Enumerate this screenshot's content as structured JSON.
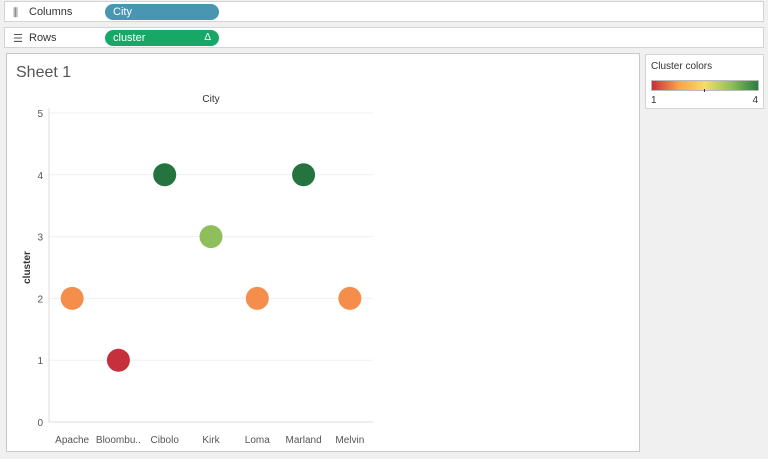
{
  "shelves": {
    "columns": {
      "label": "Columns",
      "icon": "columns-icon",
      "pill": "City",
      "pill_color": "#4996b2"
    },
    "rows": {
      "label": "Rows",
      "icon": "rows-icon",
      "pill": "cluster",
      "pill_delta": "Δ",
      "pill_color": "#17a868"
    }
  },
  "sheet": {
    "title": "Sheet 1"
  },
  "legend": {
    "title": "Cluster colors",
    "min": "1",
    "max": "4",
    "colors": [
      "#c62f3c",
      "#f8a34a",
      "#f2dd6a",
      "#8fbf5a",
      "#2b7a44"
    ]
  },
  "chart_data": {
    "type": "scatter",
    "title": "City",
    "xlabel": "",
    "ylabel": "cluster",
    "categories": [
      "Apache",
      "Bloombu..",
      "Cibolo",
      "Kirk",
      "Loma",
      "Marland",
      "Melvin"
    ],
    "values": [
      2,
      1,
      4,
      3,
      2,
      4,
      2
    ],
    "point_colors": [
      "#f58d4b",
      "#c62f3c",
      "#25733e",
      "#8fbf5a",
      "#f58d4b",
      "#25733e",
      "#f58d4b"
    ],
    "ylim": [
      0,
      5
    ],
    "yticks": [
      0,
      1,
      2,
      3,
      4,
      5
    ],
    "grid": true,
    "legend_position": "right"
  }
}
